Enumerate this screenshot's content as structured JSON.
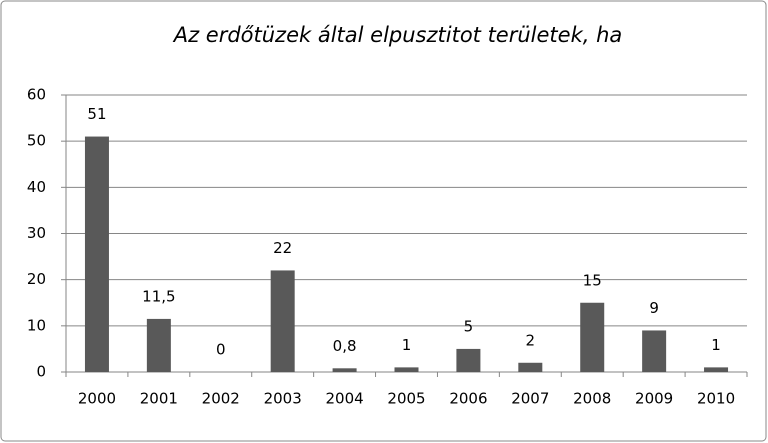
{
  "chart_data": {
    "type": "bar",
    "title": "Az erdőtüzek által elpusztitot területek, ha",
    "categories": [
      "2000",
      "2001",
      "2002",
      "2003",
      "2004",
      "2005",
      "2006",
      "2007",
      "2008",
      "2009",
      "2010"
    ],
    "values": [
      51,
      11.5,
      0,
      22,
      0.8,
      1,
      5,
      2,
      15,
      9,
      1
    ],
    "value_labels": [
      "51",
      "11,5",
      "0",
      "22",
      "0,8",
      "1",
      "5",
      "2",
      "15",
      "9",
      "1"
    ],
    "color": "#595959",
    "ylim": [
      0,
      60
    ],
    "yticks": [
      0,
      10,
      20,
      30,
      40,
      50,
      60
    ],
    "grid": true
  }
}
